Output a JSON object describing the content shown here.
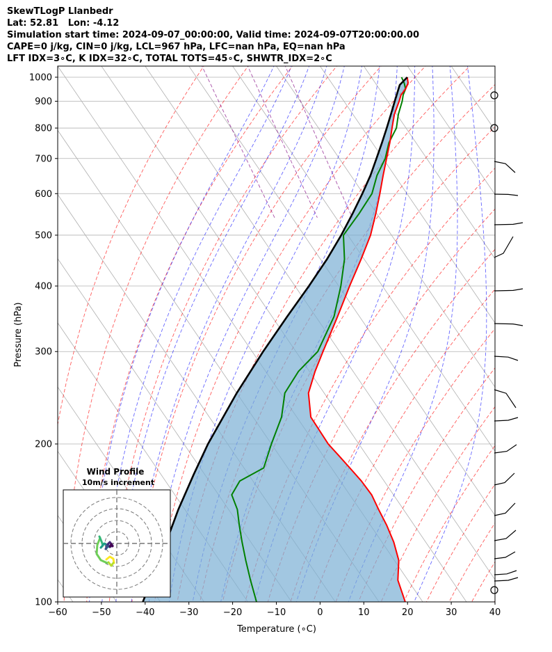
{
  "header": {
    "line1": "SkewTLogP Llanbedr",
    "line2": "Lat: 52.81   Lon: -4.12",
    "line3": "Simulation start time: 2024-09-07_00:00:00, Valid time: 2024-09-07T20:00:00.00",
    "line4": "CAPE=0 j/kg, CIN=0 j/kg, LCL=967 hPa, LFC=nan hPa, EQ=nan hPa",
    "line5": "LFT IDX=3∘C, K IDX=32∘C, TOTAL TOTS=45∘C, SHWTR_IDX=2∘C"
  },
  "colors": {
    "temperature": "#ff0000",
    "dewpoint": "#008000",
    "parcel": "#000000",
    "cape_fill": "#7bafd4",
    "dry_adiabat": "#ff0000",
    "moist_adiabat": "#0000ff",
    "mixing_ratio": "#800080",
    "isotherm_grid": "#b0b0b0",
    "hodograph_colormap": "viridis"
  },
  "chart_data": {
    "type": "line",
    "subtype": "skew-t log-p",
    "xlabel": "Temperature (∘C)",
    "ylabel": "Pressure (hPa)",
    "xlim": [
      -60,
      40
    ],
    "ylim": [
      1050,
      100
    ],
    "y_scale": "log",
    "x_ticks": [
      "−60",
      "−50",
      "−40",
      "−30",
      "−20",
      "−10",
      "0",
      "10",
      "20",
      "30",
      "40"
    ],
    "y_ticks": [
      "100",
      "200",
      "300",
      "400",
      "500",
      "600",
      "700",
      "800",
      "900",
      "1000"
    ],
    "grid": true,
    "series": [
      {
        "id": "temperature",
        "pressure": [
          1000,
          975,
          950,
          925,
          900,
          850,
          800,
          750,
          700,
          650,
          600,
          550,
          500,
          450,
          400,
          350,
          300,
          275,
          250,
          225,
          200,
          190,
          180,
          170,
          160,
          150,
          140,
          130,
          120,
          110,
          100
        ],
        "values": [
          18.2,
          17.5,
          16.0,
          14.0,
          12.6,
          9.5,
          6.8,
          4.0,
          0.8,
          -2.6,
          -6.2,
          -10.2,
          -14.8,
          -20.7,
          -27.5,
          -35.0,
          -43.8,
          -48.7,
          -53.6,
          -56.8,
          -57.0,
          -56.4,
          -55.8,
          -55.2,
          -55.0,
          -55.7,
          -56.3,
          -57.3,
          -59.0,
          -62.3,
          -64.0
        ]
      },
      {
        "id": "dewpoint",
        "pressure": [
          1000,
          975,
          950,
          925,
          900,
          850,
          800,
          750,
          700,
          650,
          600,
          550,
          500,
          450,
          400,
          350,
          300,
          275,
          250,
          225,
          200,
          180,
          170,
          160,
          150,
          140,
          130,
          120,
          110,
          100
        ],
        "values": [
          16.9,
          16.6,
          16.0,
          14.5,
          13.3,
          10.4,
          7.8,
          3.8,
          0.5,
          -4.0,
          -8.0,
          -14.0,
          -21.0,
          -24.5,
          -29.5,
          -35.8,
          -45.0,
          -52.5,
          -59.0,
          -63.5,
          -70.0,
          -75.5,
          -83.0,
          -87.0,
          -88.0,
          -90.0,
          -92.0,
          -94.0,
          -96.0,
          -98.0
        ]
      },
      {
        "id": "parcel",
        "pressure": [
          1000,
          967,
          900,
          850,
          800,
          750,
          700,
          650,
          600,
          550,
          500,
          450,
          400,
          350,
          300,
          250,
          200,
          175,
          150,
          125,
          100
        ],
        "values": [
          18.2,
          15.3,
          11.6,
          8.7,
          5.6,
          2.2,
          -1.5,
          -5.5,
          -10.2,
          -15.5,
          -21.5,
          -28.5,
          -36.8,
          -46.5,
          -57.5,
          -70.0,
          -84.5,
          -92.5,
          -101.5,
          -111.5,
          -124.0
        ]
      }
    ],
    "shaded_region": "parcel to temperature",
    "wind_profile": {
      "title": "Wind Profile",
      "subtitle": "10m/s increment"
    }
  }
}
